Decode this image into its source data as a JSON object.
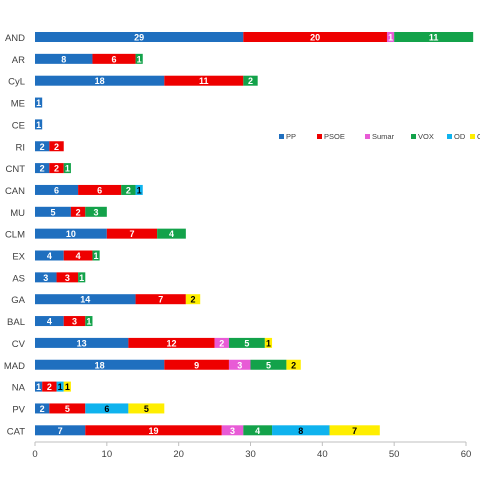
{
  "chart_data": {
    "type": "bar",
    "orientation": "horizontal",
    "stacked": true,
    "title": "",
    "xlabel": "",
    "ylabel": "",
    "xlim": [
      0,
      60
    ],
    "x_ticks": [
      "0",
      "10",
      "20",
      "30",
      "40",
      "50",
      "60"
    ],
    "grid": false,
    "legend_position": "right, inside plot",
    "categories": [
      "AND",
      "AR",
      "CyL",
      "ME",
      "CE",
      "RI",
      "CNT",
      "CAN",
      "MU",
      "CLM",
      "EX",
      "AS",
      "GA",
      "BAL",
      "CV",
      "MAD",
      "NA",
      "PV",
      "CAT"
    ],
    "series": [
      {
        "name": "PP",
        "color": "#1f6fbf",
        "label_color": "#ffffff",
        "values": [
          29,
          8,
          18,
          1,
          1,
          2,
          2,
          6,
          5,
          10,
          4,
          3,
          14,
          4,
          13,
          18,
          1,
          2,
          7
        ]
      },
      {
        "name": "PSOE",
        "color": "#ee0000",
        "label_color": "#ffffff",
        "values": [
          20,
          6,
          11,
          0,
          0,
          2,
          2,
          6,
          2,
          7,
          4,
          3,
          7,
          3,
          12,
          9,
          2,
          5,
          19
        ]
      },
      {
        "name": "Sumar",
        "color": "#e85bd6",
        "label_color": "#ffffff",
        "values": [
          1,
          0,
          0,
          0,
          0,
          0,
          0,
          0,
          0,
          0,
          0,
          0,
          0,
          0,
          2,
          3,
          0,
          0,
          3
        ]
      },
      {
        "name": "VOX",
        "color": "#13a24a",
        "label_color": "#ffffff",
        "values": [
          11,
          1,
          2,
          0,
          0,
          0,
          1,
          2,
          3,
          4,
          1,
          1,
          0,
          1,
          5,
          5,
          0,
          0,
          4
        ]
      },
      {
        "name": "OD",
        "color": "#0fb3ee",
        "label_color": "#000000",
        "values": [
          0,
          0,
          0,
          0,
          0,
          0,
          0,
          1,
          0,
          0,
          0,
          0,
          0,
          0,
          0,
          0,
          1,
          6,
          8
        ]
      },
      {
        "name": "OI",
        "color": "#ffee00",
        "label_color": "#000000",
        "values": [
          0,
          0,
          0,
          0,
          0,
          0,
          0,
          0,
          0,
          0,
          0,
          0,
          2,
          0,
          1,
          2,
          1,
          5,
          7
        ]
      }
    ]
  }
}
